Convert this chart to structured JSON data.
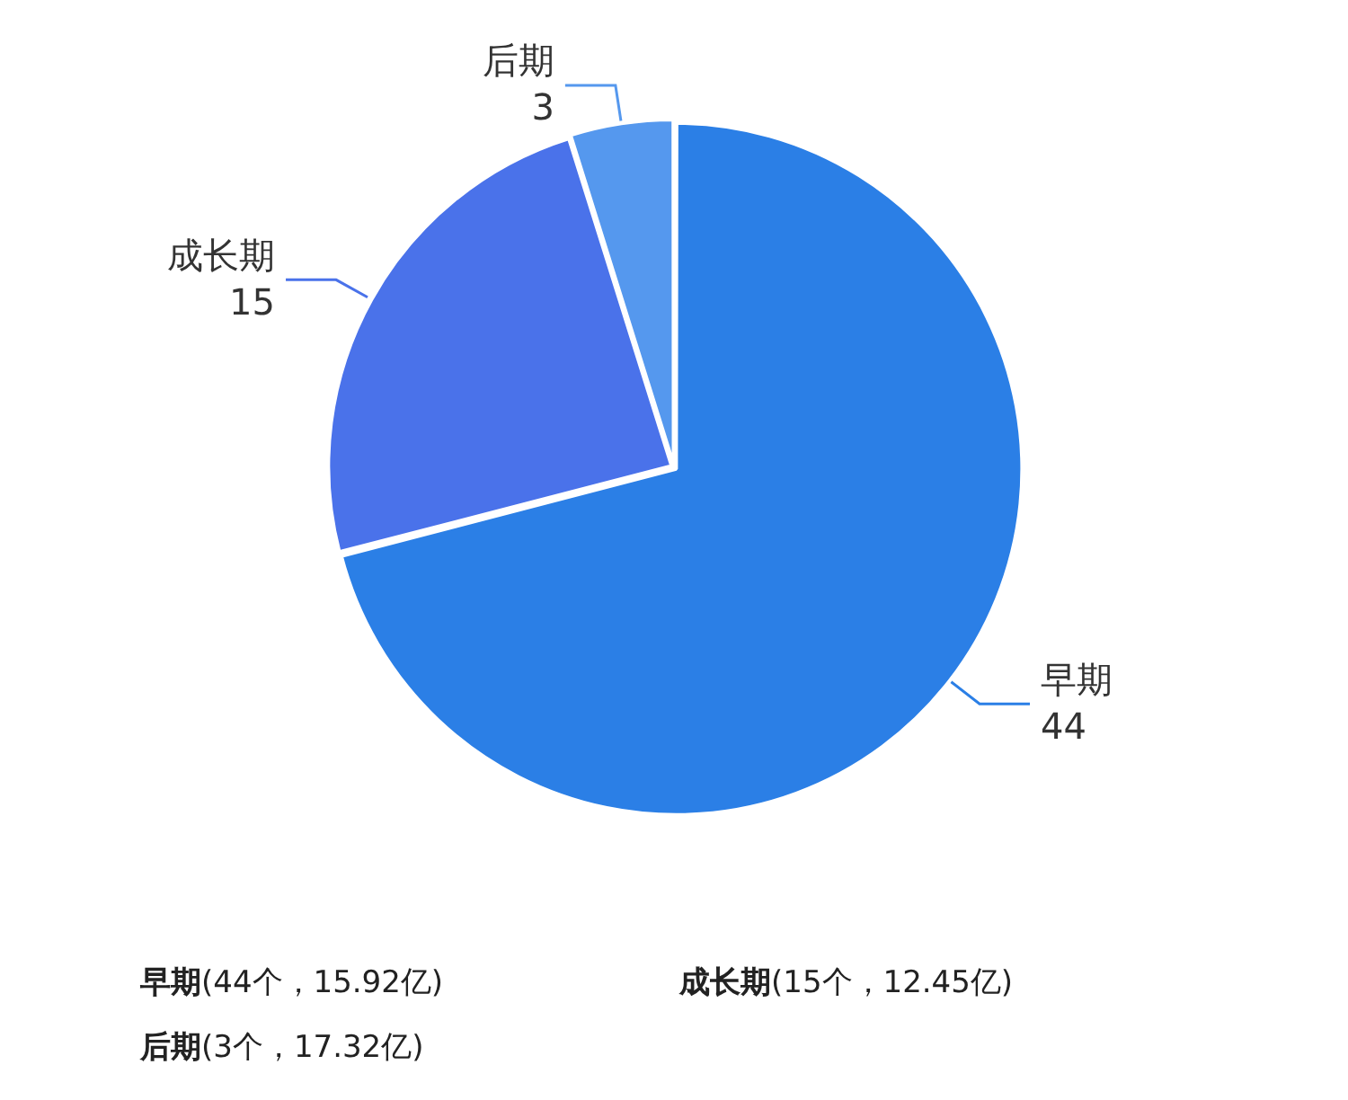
{
  "chart_data": {
    "type": "pie",
    "categories": [
      "早期",
      "成长期",
      "后期"
    ],
    "values": [
      44,
      15,
      3
    ],
    "colors": [
      "#2b7fe6",
      "#4a72ea",
      "#5598ee"
    ],
    "data_labels": true,
    "legend": false,
    "annotations": [
      "早期(44个，15.92亿)",
      "成长期(15个，12.45亿)",
      "后期(3个，17.32亿)"
    ]
  }
}
